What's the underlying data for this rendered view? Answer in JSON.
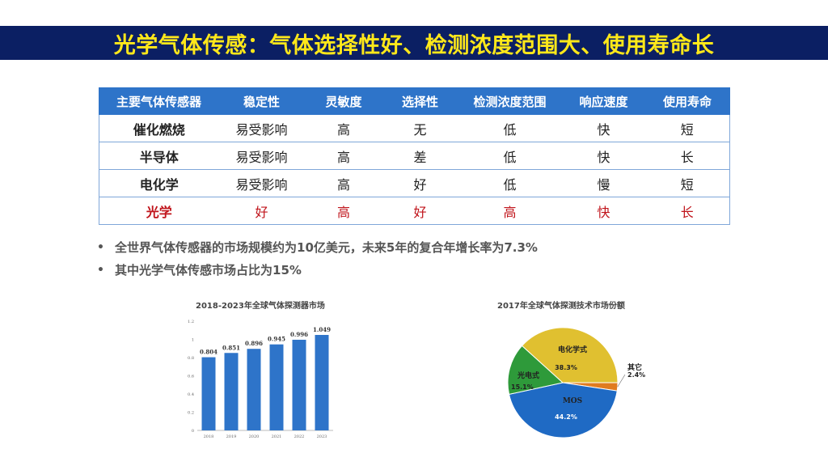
{
  "title": "光学气体传感：气体选择性好、检测浓度范围大、使用寿命长",
  "table": {
    "headers": [
      "主要气体传感器",
      "稳定性",
      "灵敏度",
      "选择性",
      "检测浓度范围",
      "响应速度",
      "使用寿命"
    ],
    "rows": [
      [
        "催化燃烧",
        "易受影响",
        "高",
        "无",
        "低",
        "快",
        "短"
      ],
      [
        "半导体",
        "易受影响",
        "高",
        "差",
        "低",
        "快",
        "长"
      ],
      [
        "电化学",
        "易受影响",
        "高",
        "好",
        "低",
        "慢",
        "短"
      ],
      [
        "光学",
        "好",
        "高",
        "好",
        "高",
        "快",
        "长"
      ]
    ],
    "highlight_color": "#c0141b"
  },
  "bullets": [
    "全世界气体传感器的市场规模约为10亿美元，未来5年的复合年增长率为7.3%",
    "其中光学气体传感市场占比为15%"
  ],
  "chart_data": [
    {
      "type": "bar",
      "title": "2018-2023年全球气体探测器市场",
      "categories": [
        "2018",
        "2019",
        "2020",
        "2021",
        "2022",
        "2023"
      ],
      "values": [
        0.804,
        0.851,
        0.896,
        0.945,
        0.996,
        1.049
      ],
      "value_labels": [
        "0.804",
        "0.851",
        "0.896",
        "0.945",
        "0.996",
        "1.049"
      ],
      "yticks": [
        "0",
        "0.2",
        "0.4",
        "0.6",
        "0.8",
        "1",
        "1.2"
      ],
      "ylim": [
        0,
        1.2
      ],
      "color": "#2e74c9",
      "grid": false
    },
    {
      "type": "pie",
      "title": "2017年全球气体探测技术市场份额",
      "slices": [
        {
          "name": "其它",
          "value": 2.4,
          "label": "2.4%",
          "color": "#e07b1f"
        },
        {
          "name": "MOS",
          "value": 44.2,
          "label": "44.2%",
          "color": "#1f6ac4"
        },
        {
          "name": "光电式",
          "value": 15.1,
          "label": "15.1%",
          "color": "#2e9a3a"
        },
        {
          "name": "电化学式",
          "value": 38.3,
          "label": "38.3%",
          "color": "#e0c030"
        }
      ]
    }
  ]
}
